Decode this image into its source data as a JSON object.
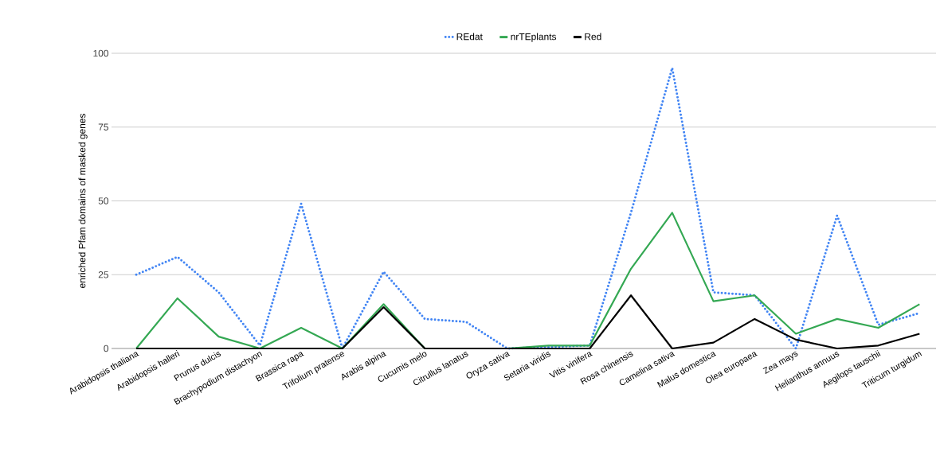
{
  "chart_data": {
    "type": "line",
    "ylabel": "enriched Pfam domains of masked genes",
    "categories": [
      "Arabidopsis thaliana",
      "Arabidopsis halleri",
      "Prunus dulcis",
      "Brachypodium distachyon",
      "Brassica rapa",
      "Trifolium pratense",
      "Arabis alpina",
      "Cucumis melo",
      "Citrullus lanatus",
      "Oryza sativa",
      "Setaria viridis",
      "Vitis vinifera",
      "Rosa chinensis",
      "Camelina sativa",
      "Malus domestica",
      "Olea europaea",
      "Zea mays",
      "Helianthus annuus",
      "Aegilops tauschii",
      "Triticum turgidum"
    ],
    "series": [
      {
        "name": "REdat",
        "color": "#4285f4",
        "line_style": "dotted",
        "values": [
          25,
          31,
          19,
          1,
          49,
          0,
          26,
          10,
          9,
          0,
          0.5,
          1,
          46,
          95,
          19,
          18,
          0,
          45,
          8,
          12
        ]
      },
      {
        "name": "nrTEplants",
        "color": "#34a853",
        "line_style": "solid",
        "values": [
          0,
          17,
          4,
          0,
          7,
          0,
          15,
          0,
          0,
          0,
          1,
          1,
          27,
          46,
          16,
          18,
          5,
          10,
          7,
          15
        ]
      },
      {
        "name": "Red",
        "color": "#000000",
        "line_style": "solid",
        "values": [
          0,
          0,
          0,
          0,
          0,
          0,
          14,
          0,
          0,
          0,
          0,
          0,
          18,
          0,
          2,
          10,
          3,
          0,
          1,
          5
        ]
      }
    ],
    "ylim": [
      0,
      100
    ],
    "yticks": [
      0,
      25,
      50,
      75,
      100
    ],
    "grid": "y",
    "legend": "top",
    "marker": "none"
  }
}
